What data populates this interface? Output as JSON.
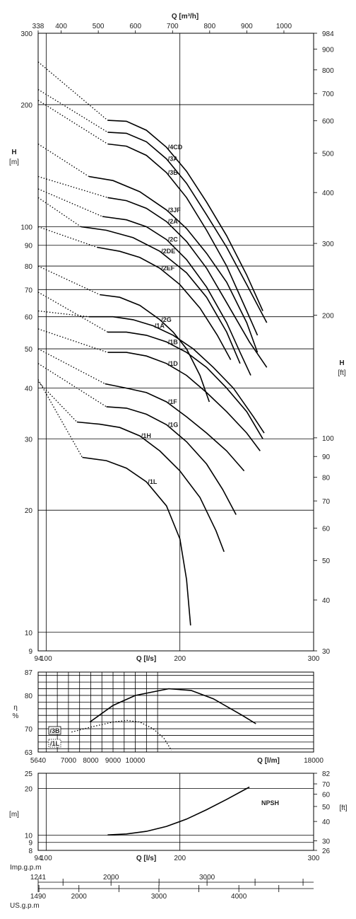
{
  "chart_data": [
    {
      "type": "line",
      "x_scale": "linear",
      "y_scale": "log",
      "x_bottom": {
        "label": "Q [l/s]",
        "range": [
          94,
          300
        ],
        "ticks": [
          94,
          100,
          200,
          300
        ]
      },
      "x_top": {
        "label": "Q [m³/h]",
        "range": [
          338,
          1080
        ],
        "ticks": [
          338,
          400,
          500,
          600,
          700,
          800,
          900,
          1000
        ]
      },
      "y_left": {
        "label": "H",
        "unit": "[m]",
        "range": [
          9,
          300
        ],
        "ticks": [
          9,
          10,
          20,
          30,
          40,
          50,
          60,
          70,
          80,
          90,
          100,
          200,
          300
        ]
      },
      "y_right": {
        "label": "H",
        "unit": "[ft]",
        "range": [
          30,
          984
        ],
        "ticks": [
          30,
          40,
          50,
          60,
          70,
          80,
          90,
          100,
          200,
          300,
          400,
          500,
          600,
          700,
          800,
          900,
          984
        ]
      },
      "series": [
        {
          "name": "/4CD",
          "dotted": [
            [
              94,
              255
            ],
            [
              146,
              183
            ]
          ],
          "solid": [
            [
              146,
              183
            ],
            [
              160,
              182
            ],
            [
              175,
              173
            ],
            [
              190,
              157
            ],
            [
              205,
              137
            ],
            [
              220,
              115
            ],
            [
              235,
              95
            ],
            [
              250,
              76
            ],
            [
              262,
              62
            ]
          ]
        },
        {
          "name": "/3A",
          "dotted": [
            [
              94,
              218
            ],
            [
              146,
              171
            ]
          ],
          "solid": [
            [
              146,
              171
            ],
            [
              160,
              170
            ],
            [
              175,
              162
            ],
            [
              190,
              147
            ],
            [
              205,
              128
            ],
            [
              220,
              107
            ],
            [
              235,
              89
            ],
            [
              250,
              72
            ],
            [
              265,
              58
            ]
          ]
        },
        {
          "name": "/3B",
          "dotted": [
            [
              94,
              205
            ],
            [
              146,
              160
            ]
          ],
          "solid": [
            [
              146,
              160
            ],
            [
              160,
              158
            ],
            [
              175,
              150
            ],
            [
              190,
              136
            ],
            [
              205,
              118
            ],
            [
              220,
              98
            ],
            [
              235,
              80
            ],
            [
              250,
              62
            ],
            [
              258,
              54
            ]
          ]
        },
        {
          "name": "/3JF",
          "dotted": [
            [
              94,
              160
            ],
            [
              132,
              133
            ]
          ],
          "solid": [
            [
              132,
              133
            ],
            [
              150,
              130
            ],
            [
              170,
              122
            ],
            [
              190,
              110
            ],
            [
              205,
              99
            ],
            [
              220,
              86
            ],
            [
              235,
              73
            ],
            [
              250,
              58
            ],
            [
              258,
              49
            ]
          ]
        },
        {
          "name": "/2A",
          "dotted": [
            [
              94,
              133
            ],
            [
              146,
              118
            ]
          ],
          "solid": [
            [
              146,
              118
            ],
            [
              160,
              116
            ],
            [
              175,
              111
            ],
            [
              190,
              103
            ],
            [
              205,
              92
            ],
            [
              220,
              79
            ],
            [
              235,
              65
            ],
            [
              252,
              52
            ],
            [
              265,
              45
            ]
          ]
        },
        {
          "name": "/2C",
          "dotted": [
            [
              94,
              124
            ],
            [
              142,
              106
            ]
          ],
          "solid": [
            [
              142,
              106
            ],
            [
              160,
              104
            ],
            [
              175,
              100
            ],
            [
              190,
              93
            ],
            [
              205,
              83
            ],
            [
              220,
              71
            ],
            [
              235,
              58
            ],
            [
              245,
              49
            ],
            [
              253,
              43
            ]
          ]
        },
        {
          "name": "/2DE",
          "dotted": [
            [
              94,
              118
            ],
            [
              126,
              100
            ]
          ],
          "solid": [
            [
              126,
              100
            ],
            [
              145,
              98
            ],
            [
              165,
              94
            ],
            [
              185,
              87
            ],
            [
              205,
              77
            ],
            [
              220,
              67
            ],
            [
              235,
              55
            ],
            [
              245,
              46
            ]
          ]
        },
        {
          "name": "/2EF",
          "dotted": [
            [
              94,
              100
            ],
            [
              138,
              89
            ]
          ],
          "solid": [
            [
              138,
              89
            ],
            [
              155,
              87
            ],
            [
              170,
              84
            ],
            [
              185,
              79
            ],
            [
              200,
              72
            ],
            [
              215,
              63
            ],
            [
              228,
              54
            ],
            [
              238,
              47
            ]
          ]
        },
        {
          "name": "/2G",
          "dotted": [
            [
              94,
              80
            ],
            [
              140,
              68
            ]
          ],
          "solid": [
            [
              140,
              68
            ],
            [
              155,
              67
            ],
            [
              170,
              64
            ],
            [
              185,
              59
            ],
            [
              195,
              55
            ],
            [
              205,
              50
            ],
            [
              215,
              43
            ],
            [
              222,
              37
            ]
          ]
        },
        {
          "name": "/1A",
          "dotted": [
            [
              94,
              62
            ],
            [
              132,
              60
            ]
          ],
          "solid": [
            [
              132,
              60
            ],
            [
              150,
              60
            ],
            [
              165,
              59
            ],
            [
              180,
              57
            ],
            [
              195,
              54
            ],
            [
              210,
              50
            ],
            [
              225,
              45
            ],
            [
              240,
              40
            ],
            [
              255,
              34
            ],
            [
              263,
              31
            ]
          ]
        },
        {
          "name": "/1B",
          "dotted": [
            [
              94,
              69
            ],
            [
              146,
              55
            ]
          ],
          "solid": [
            [
              146,
              55
            ],
            [
              160,
              55
            ],
            [
              175,
              54
            ],
            [
              190,
              52
            ],
            [
              205,
              49
            ],
            [
              220,
              45
            ],
            [
              235,
              40
            ],
            [
              250,
              35
            ],
            [
              262,
              30
            ]
          ]
        },
        {
          "name": "/1D",
          "dotted": [
            [
              94,
              56
            ],
            [
              146,
              49
            ]
          ],
          "solid": [
            [
              146,
              49
            ],
            [
              160,
              49
            ],
            [
              175,
              48
            ],
            [
              190,
              46
            ],
            [
              205,
              43
            ],
            [
              220,
              39
            ],
            [
              235,
              35
            ],
            [
              250,
              31
            ],
            [
              260,
              28
            ]
          ]
        },
        {
          "name": "/1F",
          "dotted": [
            [
              94,
              50
            ],
            [
              144,
              41
            ]
          ],
          "solid": [
            [
              144,
              41
            ],
            [
              160,
              40
            ],
            [
              175,
              39
            ],
            [
              190,
              37
            ],
            [
              205,
              34
            ],
            [
              220,
              31
            ],
            [
              235,
              28
            ],
            [
              248,
              25
            ]
          ]
        },
        {
          "name": "/1G",
          "dotted": [
            [
              94,
              46
            ],
            [
              145,
              36
            ]
          ],
          "solid": [
            [
              145,
              36
            ],
            [
              160,
              35.7
            ],
            [
              175,
              34.5
            ],
            [
              190,
              32.5
            ],
            [
              205,
              29.5
            ],
            [
              220,
              26
            ],
            [
              232,
              22.5
            ],
            [
              242,
              19.5
            ]
          ]
        },
        {
          "name": "/1H",
          "dotted": [
            [
              94,
              41.5
            ],
            [
              123,
              33
            ]
          ],
          "solid": [
            [
              123,
              33
            ],
            [
              140,
              32.6
            ],
            [
              155,
              32
            ],
            [
              170,
              30.5
            ],
            [
              185,
              28
            ],
            [
              200,
              25
            ],
            [
              215,
              21.5
            ],
            [
              227,
              17.8
            ],
            [
              233,
              15.8
            ]
          ]
        },
        {
          "name": "/1L",
          "dotted": [
            [
              94,
              42
            ],
            [
              127,
              27
            ]
          ],
          "solid": [
            [
              127,
              27
            ],
            [
              145,
              26.5
            ],
            [
              160,
              25.4
            ],
            [
              175,
              23.5
            ],
            [
              190,
              20.5
            ],
            [
              200,
              17
            ],
            [
              205,
              13.5
            ],
            [
              208,
              10.4
            ]
          ]
        }
      ]
    },
    {
      "type": "line",
      "x_bottom": {
        "label": "Q [l/m]",
        "range": [
          5640,
          18000
        ],
        "ticks": [
          5640,
          7000,
          8000,
          9000,
          10000,
          18000
        ]
      },
      "y_left": {
        "label": "η",
        "unit": "%",
        "range": [
          63,
          87
        ],
        "ticks": [
          63,
          70,
          80,
          87
        ]
      },
      "legend": [
        "/3B",
        "/1L"
      ],
      "series": [
        {
          "name": "/3B",
          "style": "solid",
          "points": [
            [
              7960,
              72
            ],
            [
              9000,
              77
            ],
            [
              10000,
              80
            ],
            [
              11500,
              82
            ],
            [
              12500,
              81.5
            ],
            [
              13500,
              79
            ],
            [
              14800,
              74
            ],
            [
              15410,
              71.5
            ]
          ]
        },
        {
          "name": "/1L",
          "style": "dotted",
          "points": [
            [
              7140,
              69
            ],
            [
              8000,
              70.5
            ],
            [
              9000,
              72
            ],
            [
              9620,
              72.5
            ],
            [
              10200,
              72
            ],
            [
              10800,
              70
            ],
            [
              11300,
              67
            ],
            [
              11620,
              63.5
            ]
          ]
        }
      ]
    },
    {
      "type": "line",
      "x_bottom": {
        "label": "Q [l/s]",
        "range": [
          94,
          300
        ],
        "ticks": [
          94,
          100,
          200,
          300
        ]
      },
      "y_left": {
        "label": "",
        "unit": "[m]",
        "range": [
          8,
          25
        ],
        "ticks": [
          8,
          9,
          10,
          20,
          25
        ]
      },
      "y_right": {
        "label": "",
        "unit": "[ft]",
        "range": [
          26,
          82
        ],
        "ticks": [
          26,
          30,
          40,
          50,
          60,
          70,
          82
        ]
      },
      "annotation": "NPSH",
      "series": [
        {
          "name": "NPSH",
          "points": [
            [
              146,
              10.05
            ],
            [
              160,
              10.2
            ],
            [
              175,
              10.6
            ],
            [
              190,
              11.4
            ],
            [
              205,
              12.7
            ],
            [
              220,
              14.6
            ],
            [
              235,
              17.0
            ],
            [
              252,
              20.4
            ]
          ]
        }
      ]
    },
    {
      "type": "scale",
      "label": "Imp.g.p.m",
      "range": [
        1241,
        4110
      ],
      "ticks": [
        1241,
        2000,
        3000
      ]
    },
    {
      "type": "scale",
      "label": "US.g.p.m",
      "range": [
        1490,
        4935
      ],
      "ticks": [
        1490,
        2000,
        3000,
        4000
      ]
    }
  ]
}
